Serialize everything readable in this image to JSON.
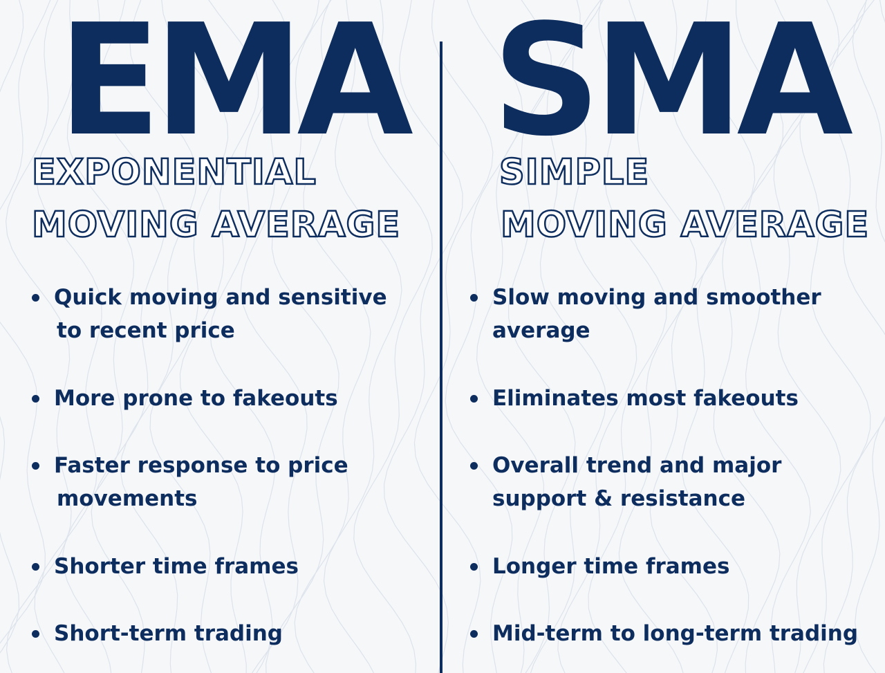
{
  "colors": {
    "navy": "#0d2d5e",
    "background": "#f6f7f9"
  },
  "ema": {
    "title": "EMA",
    "subtitle_line1": "EXPONENTIAL",
    "subtitle_line2": "MOVING AVERAGE",
    "points": [
      {
        "line1": "Quick moving and sensitive",
        "line2": "to recent price"
      },
      {
        "line1": "More prone to fakeouts",
        "line2": ""
      },
      {
        "line1": "Faster response to price",
        "line2": "movements"
      },
      {
        "line1": "Shorter time frames",
        "line2": ""
      },
      {
        "line1": "Short-term trading",
        "line2": ""
      }
    ]
  },
  "sma": {
    "title": "SMA",
    "subtitle_line1": "SIMPLE",
    "subtitle_line2": "MOVING AVERAGE",
    "points": [
      {
        "line1": "Slow moving and smoother",
        "line2": "average"
      },
      {
        "line1": "Eliminates most fakeouts",
        "line2": ""
      },
      {
        "line1": "Overall trend and major",
        "line2": "support & resistance"
      },
      {
        "line1": "Longer time frames",
        "line2": ""
      },
      {
        "line1": "Mid-term to long-term trading",
        "line2": ""
      }
    ]
  }
}
